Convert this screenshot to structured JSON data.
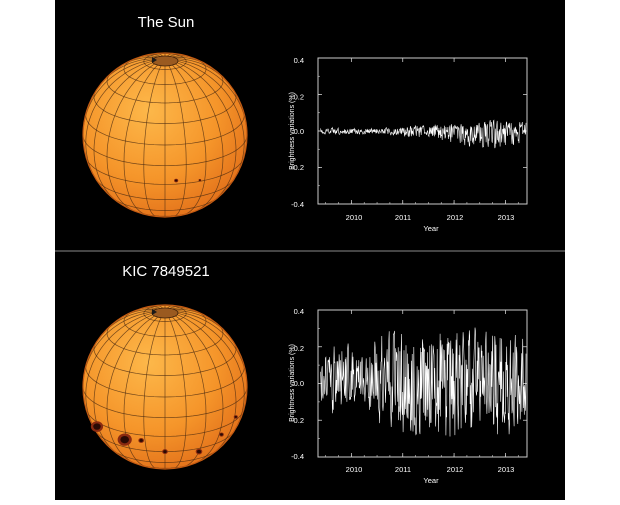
{
  "panels": [
    {
      "title": "The Sun",
      "spots": [
        {
          "lat": -12,
          "lon": 8,
          "r": 0.022
        },
        {
          "lat": -14,
          "lon": 26,
          "r": 0.014
        }
      ],
      "chart_data": {
        "type": "line",
        "title": "",
        "xlabel": "Year",
        "ylabel": "Brightness variations (%)",
        "xlim": [
          2009.35,
          2013.42
        ],
        "ylim": [
          -0.4,
          0.4
        ],
        "xticks": [
          "2010",
          "2011",
          "2012",
          "2013"
        ],
        "yticks": [
          "0.4",
          "0.2",
          "0.0",
          "-0.2",
          "-0.4"
        ],
        "envelope": [
          {
            "year": 2009.4,
            "min": -0.02,
            "max": 0.02
          },
          {
            "year": 2010.0,
            "min": -0.02,
            "max": 0.02
          },
          {
            "year": 2010.6,
            "min": -0.02,
            "max": 0.02
          },
          {
            "year": 2011.0,
            "min": -0.04,
            "max": 0.03
          },
          {
            "year": 2011.5,
            "min": -0.05,
            "max": 0.04
          },
          {
            "year": 2012.0,
            "min": -0.08,
            "max": 0.05
          },
          {
            "year": 2012.5,
            "min": -0.1,
            "max": 0.06
          },
          {
            "year": 2013.0,
            "min": -0.12,
            "max": 0.07
          },
          {
            "year": 2013.4,
            "min": -0.06,
            "max": 0.07
          }
        ]
      }
    },
    {
      "title": "KIC 7849521",
      "spots": [
        {
          "lat": -20,
          "lon": -62,
          "r": 0.065
        },
        {
          "lat": -22,
          "lon": -32,
          "r": 0.075
        },
        {
          "lat": -20,
          "lon": -18,
          "r": 0.03
        },
        {
          "lat": -30,
          "lon": 0,
          "r": 0.03
        },
        {
          "lat": -34,
          "lon": 30,
          "r": 0.035
        },
        {
          "lat": -22,
          "lon": 48,
          "r": 0.025
        },
        {
          "lat": -12,
          "lon": 62,
          "r": 0.022
        }
      ],
      "chart_data": {
        "type": "line",
        "title": "",
        "xlabel": "Year",
        "ylabel": "Brightness variations (%)",
        "xlim": [
          2009.35,
          2013.42
        ],
        "ylim": [
          -0.4,
          0.4
        ],
        "xticks": [
          "2010",
          "2011",
          "2012",
          "2013"
        ],
        "yticks": [
          "0.4",
          "0.2",
          "0.0",
          "-0.2",
          "-0.4"
        ],
        "envelope": [
          {
            "year": 2009.4,
            "min": -0.2,
            "max": 0.2
          },
          {
            "year": 2009.8,
            "min": -0.22,
            "max": 0.27
          },
          {
            "year": 2010.2,
            "min": -0.12,
            "max": 0.18
          },
          {
            "year": 2010.6,
            "min": -0.26,
            "max": 0.33
          },
          {
            "year": 2011.0,
            "min": -0.35,
            "max": 0.38
          },
          {
            "year": 2011.4,
            "min": -0.3,
            "max": 0.35
          },
          {
            "year": 2011.8,
            "min": -0.38,
            "max": 0.38
          },
          {
            "year": 2012.2,
            "min": -0.36,
            "max": 0.38
          },
          {
            "year": 2012.6,
            "min": -0.25,
            "max": 0.3
          },
          {
            "year": 2012.9,
            "min": -0.38,
            "max": 0.4
          },
          {
            "year": 2013.2,
            "min": -0.32,
            "max": 0.36
          },
          {
            "year": 2013.4,
            "min": -0.24,
            "max": 0.3
          }
        ]
      }
    }
  ]
}
